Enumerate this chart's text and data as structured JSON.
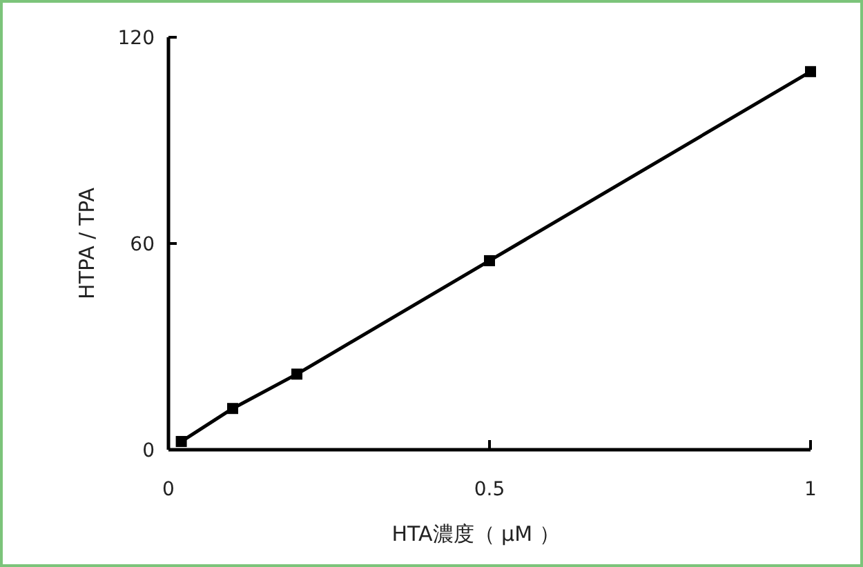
{
  "chart_data": {
    "type": "line",
    "xlabel": "HTA濃度（ μM ）",
    "ylabel": "HTPA / TPA",
    "x": [
      0.02,
      0.1,
      0.2,
      0.5,
      1
    ],
    "series": [
      {
        "color": "#000000",
        "values": [
          2.4,
          12,
          22,
          55,
          110
        ]
      }
    ],
    "xlim": [
      0,
      1
    ],
    "ylim": [
      0,
      120
    ],
    "xticks": [
      0,
      0.5,
      1
    ],
    "yticks": [
      0,
      60,
      120
    ],
    "marker": "square",
    "line_style": "solid"
  }
}
